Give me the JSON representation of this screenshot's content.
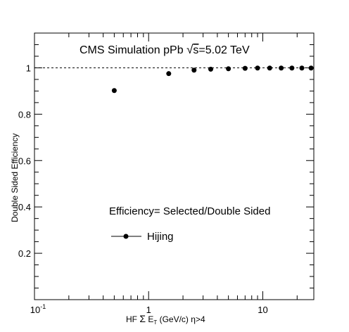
{
  "chart_data": {
    "type": "scatter",
    "title": "CMS Simulation pPb √s=5.02 TeV",
    "title_parts": {
      "prefix": "CMS Simulation pPb ",
      "radicand": "s",
      "suffix": "=5.02 TeV"
    },
    "xlabel": "HF Σ E_T (GeV/c) η>4",
    "xlabel_parts": {
      "pre": "HF ",
      "sigma": "Σ",
      "e": " E",
      "sub": "T",
      "post": " (GeV/c) ",
      "eta": "η",
      "tail": ">4"
    },
    "ylabel": "Double Sided Efficiency",
    "x_scale": "log",
    "xlim": [
      0.1,
      28
    ],
    "ylim": [
      0.0,
      1.15
    ],
    "x_ticks": [
      {
        "value": 0.1,
        "base": "10",
        "exp": "-1"
      },
      {
        "value": 1,
        "base": "1",
        "exp": ""
      },
      {
        "value": 10,
        "base": "10",
        "exp": ""
      }
    ],
    "y_ticks": [
      {
        "value": 0.2,
        "label": "0.2"
      },
      {
        "value": 0.4,
        "label": "0.4"
      },
      {
        "value": 0.6,
        "label": "0.6"
      },
      {
        "value": 0.8,
        "label": "0.8"
      },
      {
        "value": 1.0,
        "label": "1"
      }
    ],
    "reference_line": {
      "y": 1.0,
      "style": "dashed"
    },
    "annotation": "Efficiency= Selected/Double Sided",
    "series": [
      {
        "name": "Hijing",
        "marker": "circle",
        "color": "#000000",
        "x": [
          0.5,
          1.5,
          2.5,
          3.5,
          5.0,
          7.0,
          9.0,
          11.5,
          14.5,
          18.0,
          22.0,
          26.5
        ],
        "y": [
          0.902,
          0.975,
          0.99,
          0.994,
          0.996,
          0.998,
          0.999,
          0.999,
          0.999,
          0.999,
          0.999,
          0.999
        ]
      }
    ],
    "legend_position": "bottom-center",
    "grid": false
  }
}
